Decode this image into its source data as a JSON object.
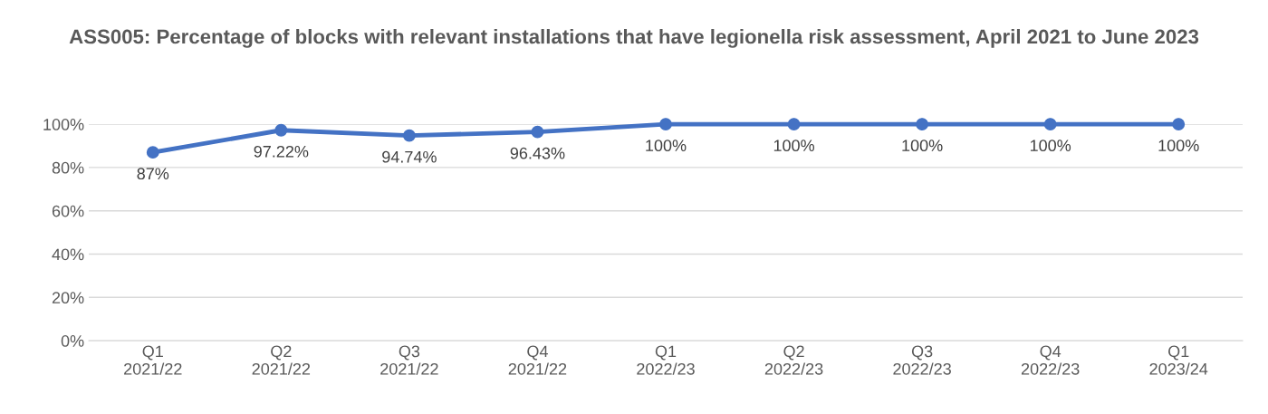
{
  "chart_data": {
    "type": "line",
    "title": "ASS005: Percentage of blocks with relevant installations that have legionella risk assessment, April 2021 to June 2023",
    "categories": [
      "Q1\n2021/22",
      "Q2\n2021/22",
      "Q3\n2021/22",
      "Q4\n2021/22",
      "Q1\n2022/23",
      "Q2\n2022/23",
      "Q3\n2022/23",
      "Q4\n2022/23",
      "Q1\n2023/24"
    ],
    "series": [
      {
        "color": "#4472c4",
        "values": [
          87,
          97.22,
          94.74,
          96.43,
          100,
          100,
          100,
          100,
          100
        ],
        "value_labels": [
          "87%",
          "97.22%",
          "94.74%",
          "96.43%",
          "100%",
          "100%",
          "100%",
          "100%",
          "100%"
        ]
      }
    ],
    "ylim": [
      0,
      100
    ],
    "yticks": [
      {
        "value": 0,
        "label": "0%"
      },
      {
        "value": 20,
        "label": "20%"
      },
      {
        "value": 40,
        "label": "40%"
      },
      {
        "value": 60,
        "label": "60%"
      },
      {
        "value": 80,
        "label": "80%"
      },
      {
        "value": 100,
        "label": "100%"
      }
    ],
    "grid": "y",
    "marker": "circle",
    "line_style": "solid",
    "legend": false
  }
}
